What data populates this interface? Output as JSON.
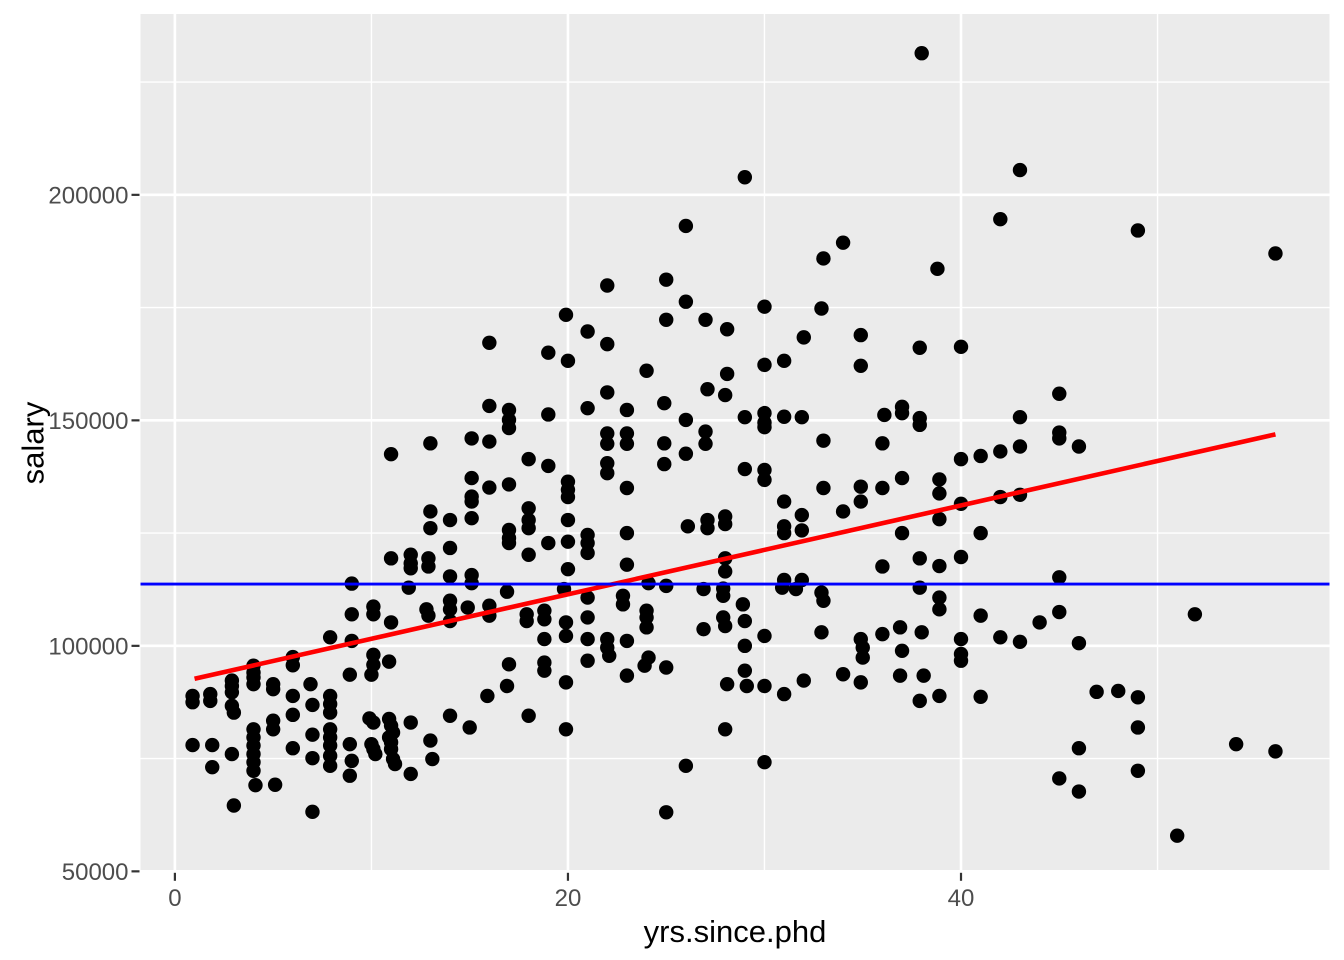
{
  "figure": {
    "background": "#FFFFFF",
    "panel_background": "#EBEBEB",
    "grid_color": "#FFFFFF",
    "tick_mark_color": "#333333",
    "tick_label_color": "#4D4D4D",
    "axis_title_color": "#000000"
  },
  "chart_data": {
    "type": "scatter",
    "title": "",
    "xlabel": "yrs.since.phd",
    "ylabel": "salary",
    "xlim": [
      -1.75,
      58.75
    ],
    "ylim": [
      49900,
      240100
    ],
    "x_ticks": [
      0,
      20,
      40
    ],
    "x_minor_ticks": [
      10,
      30,
      50
    ],
    "y_ticks": [
      50000,
      100000,
      150000,
      200000
    ],
    "y_minor_ticks": [
      75000,
      125000,
      175000,
      225000
    ],
    "grid": true,
    "legend": "none",
    "point_color": "#000000",
    "lines": [
      {
        "name": "regression-line",
        "type": "segment",
        "color": "#FF0000",
        "x1": 1,
        "y1": 92700,
        "x2": 56,
        "y2": 146900
      },
      {
        "name": "mean-line",
        "type": "hline",
        "color": "#0000FF",
        "y": 113700
      }
    ],
    "points": [
      [
        38,
        231400
      ],
      [
        29,
        203900
      ],
      [
        26,
        193100
      ],
      [
        34,
        189400
      ],
      [
        33,
        185900
      ],
      [
        25,
        181200
      ],
      [
        22,
        179900
      ],
      [
        26,
        176300
      ],
      [
        43,
        205500
      ],
      [
        42,
        194600
      ],
      [
        49,
        192100
      ],
      [
        56,
        187000
      ],
      [
        38.8,
        183600
      ],
      [
        16,
        167200
      ],
      [
        16,
        153200
      ],
      [
        17,
        152300
      ],
      [
        17,
        150100
      ],
      [
        17,
        148300
      ],
      [
        15.1,
        146000
      ],
      [
        16,
        145300
      ],
      [
        13,
        144900
      ],
      [
        11,
        142500
      ],
      [
        18,
        141400
      ],
      [
        15.1,
        137200
      ],
      [
        17,
        135800
      ],
      [
        16,
        135100
      ],
      [
        15.1,
        133100
      ],
      [
        15.1,
        132000
      ],
      [
        13,
        129800
      ],
      [
        18,
        130500
      ],
      [
        18,
        127900
      ],
      [
        14,
        127900
      ],
      [
        15.1,
        128300
      ],
      [
        13,
        126100
      ],
      [
        18,
        126100
      ],
      [
        17,
        125700
      ],
      [
        17,
        123900
      ],
      [
        17,
        122800
      ],
      [
        14,
        121700
      ],
      [
        11,
        119400
      ],
      [
        12,
        120200
      ],
      [
        12,
        118300
      ],
      [
        12,
        117200
      ],
      [
        12.9,
        119400
      ],
      [
        12.9,
        117600
      ],
      [
        18,
        120200
      ],
      [
        14,
        115400
      ],
      [
        15.1,
        115700
      ],
      [
        15.1,
        113900
      ],
      [
        9,
        113800
      ],
      [
        30,
        175200
      ],
      [
        32.9,
        174800
      ],
      [
        19.9,
        173400
      ],
      [
        25,
        172300
      ],
      [
        27,
        172300
      ],
      [
        28.1,
        170200
      ],
      [
        21,
        169700
      ],
      [
        32,
        168400
      ],
      [
        34.9,
        168900
      ],
      [
        22,
        166900
      ],
      [
        37.9,
        166100
      ],
      [
        19,
        165000
      ],
      [
        20,
        163200
      ],
      [
        30,
        162300
      ],
      [
        31,
        163200
      ],
      [
        34.9,
        162100
      ],
      [
        24,
        161000
      ],
      [
        28.1,
        160300
      ],
      [
        27.1,
        156900
      ],
      [
        28,
        155600
      ],
      [
        22,
        156200
      ],
      [
        24.9,
        153800
      ],
      [
        21,
        152700
      ],
      [
        19,
        151300
      ],
      [
        23,
        152300
      ],
      [
        26,
        150100
      ],
      [
        29,
        150700
      ],
      [
        30,
        151600
      ],
      [
        30,
        149500
      ],
      [
        31,
        150800
      ],
      [
        31.9,
        150700
      ],
      [
        30,
        148500
      ],
      [
        36.1,
        151200
      ],
      [
        37,
        153000
      ],
      [
        37,
        151600
      ],
      [
        37.9,
        150500
      ],
      [
        37.9,
        149000
      ],
      [
        22,
        147100
      ],
      [
        23,
        147100
      ],
      [
        22,
        144800
      ],
      [
        23,
        144800
      ],
      [
        24.9,
        144900
      ],
      [
        27,
        147500
      ],
      [
        27,
        144800
      ],
      [
        26,
        142600
      ],
      [
        24.9,
        140300
      ],
      [
        22,
        140500
      ],
      [
        22,
        138300
      ],
      [
        29,
        139200
      ],
      [
        30,
        139000
      ],
      [
        30,
        136800
      ],
      [
        33,
        145500
      ],
      [
        36,
        144900
      ],
      [
        19,
        139900
      ],
      [
        20,
        136400
      ],
      [
        20,
        134600
      ],
      [
        20,
        133000
      ],
      [
        23,
        135000
      ],
      [
        33,
        135000
      ],
      [
        34.9,
        135300
      ],
      [
        36,
        135000
      ],
      [
        34.9,
        132000
      ],
      [
        37,
        137200
      ],
      [
        31,
        132000
      ],
      [
        31.9,
        129000
      ],
      [
        34,
        129800
      ],
      [
        20,
        127900
      ],
      [
        26.1,
        126500
      ],
      [
        27.1,
        127900
      ],
      [
        27.1,
        126100
      ],
      [
        28,
        128700
      ],
      [
        28,
        127000
      ],
      [
        23,
        125000
      ],
      [
        21,
        124600
      ],
      [
        21,
        122800
      ],
      [
        21,
        120600
      ],
      [
        19,
        122800
      ],
      [
        20,
        123100
      ],
      [
        31,
        126500
      ],
      [
        31,
        125000
      ],
      [
        31.9,
        125600
      ],
      [
        37,
        125000
      ],
      [
        23,
        118000
      ],
      [
        20,
        117000
      ],
      [
        36,
        117600
      ],
      [
        37.9,
        119400
      ],
      [
        28,
        119400
      ],
      [
        28,
        116500
      ],
      [
        31,
        114600
      ],
      [
        31.9,
        114600
      ],
      [
        24.1,
        113900
      ],
      [
        40,
        166300
      ],
      [
        45,
        155900
      ],
      [
        43,
        150700
      ],
      [
        45,
        147300
      ],
      [
        45,
        146000
      ],
      [
        46,
        144200
      ],
      [
        43,
        144200
      ],
      [
        42,
        143100
      ],
      [
        41,
        142100
      ],
      [
        40,
        141400
      ],
      [
        38.9,
        136900
      ],
      [
        38.9,
        133800
      ],
      [
        40,
        131500
      ],
      [
        42,
        133000
      ],
      [
        43,
        133500
      ],
      [
        38.9,
        128100
      ],
      [
        41,
        125000
      ],
      [
        40,
        119700
      ],
      [
        38.9,
        117700
      ],
      [
        45,
        115200
      ],
      [
        11.9,
        112900
      ],
      [
        16.9,
        112000
      ],
      [
        10.1,
        108700
      ],
      [
        10.1,
        107000
      ],
      [
        9,
        107000
      ],
      [
        12.8,
        108100
      ],
      [
        12.9,
        106700
      ],
      [
        14,
        110000
      ],
      [
        14,
        108100
      ],
      [
        14,
        105500
      ],
      [
        14.9,
        108500
      ],
      [
        16,
        108900
      ],
      [
        16,
        106700
      ],
      [
        17.9,
        107000
      ],
      [
        17.9,
        105500
      ],
      [
        11,
        105200
      ],
      [
        7.9,
        101900
      ],
      [
        9,
        101100
      ],
      [
        6,
        97500
      ],
      [
        6,
        95700
      ],
      [
        4,
        95600
      ],
      [
        4,
        94100
      ],
      [
        2.9,
        92300
      ],
      [
        2.9,
        91100
      ],
      [
        2.9,
        89700
      ],
      [
        4,
        93000
      ],
      [
        4,
        91500
      ],
      [
        5,
        91500
      ],
      [
        5,
        90400
      ],
      [
        1.8,
        89300
      ],
      [
        1.8,
        87800
      ],
      [
        0.9,
        88900
      ],
      [
        0.9,
        87500
      ],
      [
        2.9,
        86700
      ],
      [
        3,
        85200
      ],
      [
        6.9,
        91500
      ],
      [
        7,
        86900
      ],
      [
        6,
        88900
      ],
      [
        6,
        84700
      ],
      [
        6,
        77300
      ],
      [
        7,
        80300
      ],
      [
        7,
        75100
      ],
      [
        7.9,
        88900
      ],
      [
        7.9,
        87100
      ],
      [
        7.9,
        85200
      ],
      [
        7.9,
        81500
      ],
      [
        7.9,
        79700
      ],
      [
        7.9,
        77900
      ],
      [
        7.9,
        75600
      ],
      [
        7.9,
        73400
      ],
      [
        4,
        81500
      ],
      [
        4,
        79700
      ],
      [
        4,
        77900
      ],
      [
        4,
        76000
      ],
      [
        4,
        74200
      ],
      [
        4,
        72300
      ],
      [
        4.1,
        69100
      ],
      [
        5,
        83400
      ],
      [
        5,
        81500
      ],
      [
        5.1,
        69200
      ],
      [
        8.9,
        78200
      ],
      [
        9,
        74500
      ],
      [
        8.9,
        71200
      ],
      [
        8.9,
        93600
      ],
      [
        9.9,
        83900
      ],
      [
        10.1,
        83000
      ],
      [
        10.1,
        98000
      ],
      [
        10.1,
        95800
      ],
      [
        10,
        93600
      ],
      [
        10.9,
        96500
      ],
      [
        10.9,
        83800
      ],
      [
        11,
        82300
      ],
      [
        11.1,
        80800
      ],
      [
        12,
        83000
      ],
      [
        10,
        78200
      ],
      [
        10.1,
        77100
      ],
      [
        10.2,
        76000
      ],
      [
        10.9,
        79700
      ],
      [
        11,
        78600
      ],
      [
        11,
        77100
      ],
      [
        11.1,
        74900
      ],
      [
        11.2,
        73800
      ],
      [
        13,
        79000
      ],
      [
        13.1,
        74900
      ],
      [
        12,
        71600
      ],
      [
        14,
        84500
      ],
      [
        15,
        81900
      ],
      [
        15.9,
        88900
      ],
      [
        16.9,
        91100
      ],
      [
        17,
        95900
      ],
      [
        18,
        84500
      ],
      [
        3,
        64600
      ],
      [
        7,
        63200
      ],
      [
        0.9,
        78000
      ],
      [
        1.9,
        78000
      ],
      [
        2.9,
        76000
      ],
      [
        1.9,
        73100
      ],
      [
        19.8,
        112600
      ],
      [
        25,
        113300
      ],
      [
        26.9,
        112600
      ],
      [
        27.9,
        112700
      ],
      [
        30.9,
        112900
      ],
      [
        31.6,
        112600
      ],
      [
        32.9,
        111800
      ],
      [
        33,
        110000
      ],
      [
        37.9,
        112900
      ],
      [
        18.8,
        107800
      ],
      [
        18.8,
        105900
      ],
      [
        18.8,
        101500
      ],
      [
        18.8,
        96300
      ],
      [
        18.8,
        94500
      ],
      [
        19.9,
        105200
      ],
      [
        19.9,
        102200
      ],
      [
        19.9,
        91900
      ],
      [
        19.9,
        81500
      ],
      [
        21,
        110700
      ],
      [
        21,
        106300
      ],
      [
        21,
        101500
      ],
      [
        21,
        96700
      ],
      [
        22.8,
        111100
      ],
      [
        22.8,
        109200
      ],
      [
        23,
        101100
      ],
      [
        23,
        93400
      ],
      [
        22,
        101500
      ],
      [
        22,
        99600
      ],
      [
        22.1,
        97800
      ],
      [
        24,
        107800
      ],
      [
        24,
        106300
      ],
      [
        24,
        104100
      ],
      [
        24.1,
        97400
      ],
      [
        23.9,
        95600
      ],
      [
        25,
        95200
      ],
      [
        26.9,
        103700
      ],
      [
        27.9,
        106300
      ],
      [
        28,
        104400
      ],
      [
        27.9,
        111100
      ],
      [
        28.1,
        91500
      ],
      [
        28,
        81500
      ],
      [
        28.9,
        109200
      ],
      [
        29,
        105500
      ],
      [
        29,
        100000
      ],
      [
        29,
        94500
      ],
      [
        29.1,
        91100
      ],
      [
        30,
        102200
      ],
      [
        30,
        91100
      ],
      [
        31,
        89300
      ],
      [
        32,
        92300
      ],
      [
        32.9,
        103000
      ],
      [
        34,
        93700
      ],
      [
        34.9,
        101500
      ],
      [
        35,
        99600
      ],
      [
        35,
        97400
      ],
      [
        34.9,
        91900
      ],
      [
        36,
        102600
      ],
      [
        36.9,
        104100
      ],
      [
        37,
        98900
      ],
      [
        36.9,
        93400
      ],
      [
        38,
        103000
      ],
      [
        38.1,
        93400
      ],
      [
        37.9,
        87800
      ],
      [
        26,
        73400
      ],
      [
        30,
        74200
      ],
      [
        25,
        63100
      ],
      [
        38.9,
        110700
      ],
      [
        38.9,
        108100
      ],
      [
        40,
        101500
      ],
      [
        40,
        98200
      ],
      [
        40,
        96700
      ],
      [
        41,
        106700
      ],
      [
        42,
        101900
      ],
      [
        43,
        100900
      ],
      [
        44,
        105200
      ],
      [
        45,
        107500
      ],
      [
        46,
        100600
      ],
      [
        38.9,
        88900
      ],
      [
        41,
        88700
      ],
      [
        46.9,
        89800
      ],
      [
        48,
        90000
      ],
      [
        49,
        88600
      ],
      [
        49,
        81900
      ],
      [
        46,
        77300
      ],
      [
        54,
        78200
      ],
      [
        56,
        76600
      ],
      [
        49,
        72300
      ],
      [
        45,
        70600
      ],
      [
        46,
        67700
      ],
      [
        51,
        57900
      ],
      [
        51.9,
        107000
      ]
    ]
  }
}
